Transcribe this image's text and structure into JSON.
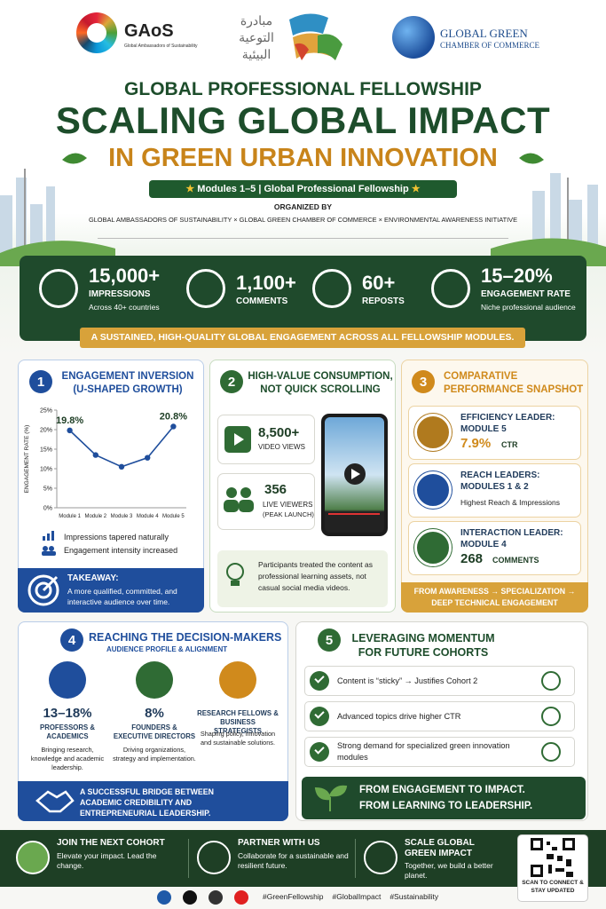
{
  "header": {
    "gaos_name": "GAoS",
    "gaos_full": "Global Ambassadors of Sustainability",
    "arabic_initiative": "مبادرة التوعية البيئية",
    "chamber_line1": "GLOBAL GREEN",
    "chamber_line2": "CHAMBER OF COMMERCE"
  },
  "title": {
    "pre": "GLOBAL PROFESSIONAL FELLOWSHIP",
    "main": "SCALING GLOBAL IMPACT",
    "sub": "IN GREEN URBAN INNOVATION",
    "badge": "Modules 1–5 | Global Professional Fellowship",
    "organized_label": "ORGANIZED BY",
    "organizers": "GLOBAL AMBASSADORS OF SUSTAINABILITY × GLOBAL GREEN CHAMBER OF COMMERCE × ENVIRONMENTAL AWARENESS INITIATIVE"
  },
  "stats": [
    {
      "value": "15,000+",
      "label": "IMPRESSIONS",
      "note": "Across 40+ countries"
    },
    {
      "value": "1,100+",
      "label": "COMMENTS"
    },
    {
      "value": "60+",
      "label": "REPOSTS"
    },
    {
      "value": "15–20%",
      "label": "ENGAGEMENT RATE",
      "note": "Niche professional audience"
    }
  ],
  "stats_banner": "A SUSTAINED, HIGH-QUALITY GLOBAL ENGAGEMENT ACROSS ALL FELLOWSHIP MODULES.",
  "panel1": {
    "number": "1",
    "title": "ENGAGEMENT INVERSION (U-SHAPED GROWTH)",
    "notes": [
      "Impressions tapered naturally",
      "Engagement intensity increased"
    ],
    "takeaway_title": "TAKEAWAY:",
    "takeaway_text": "A more qualified, committed, and interactive audience over time."
  },
  "chart_data": {
    "type": "line",
    "y_label": "ENGAGEMENT RATE (%)",
    "categories": [
      "Module 1",
      "Module 2",
      "Module 3",
      "Module 4",
      "Module 5"
    ],
    "values": [
      19.8,
      13.5,
      10.5,
      12.8,
      20.8
    ],
    "value_labels": [
      "19.8%",
      null,
      null,
      null,
      "20.8%"
    ],
    "color": "#1f4e9c",
    "ylim": [
      0,
      25
    ],
    "yticks": [
      {
        "value": 0,
        "label": "0%"
      },
      {
        "value": 5,
        "label": "5%"
      },
      {
        "value": 10,
        "label": "10%"
      },
      {
        "value": 15,
        "label": "15%"
      },
      {
        "value": 20,
        "label": "20%"
      },
      {
        "value": 25,
        "label": "25%"
      }
    ],
    "grid": false
  },
  "panel2": {
    "number": "2",
    "title": "HIGH-VALUE CONSUMPTION, NOT QUICK SCROLLING",
    "stats": [
      {
        "value": "8,500+",
        "label": "VIDEO VIEWS"
      },
      {
        "value": "356",
        "label": "LIVE VIEWERS",
        "note": "(PEAK LAUNCH)"
      }
    ],
    "note": "Participants treated the content as professional learning assets, not casual social media videos."
  },
  "panel3": {
    "number": "3",
    "title": "COMPARATIVE PERFORMANCE SNAPSHOT",
    "items": [
      {
        "heading": "EFFICIENCY LEADER:",
        "module": "MODULE 5",
        "value": "7.9%",
        "unit": "CTR"
      },
      {
        "heading": "REACH LEADERS:",
        "module": "MODULES 1 & 2",
        "detail": "Highest Reach & Impressions"
      },
      {
        "heading": "INTERACTION LEADER:",
        "module": "MODULE 4",
        "value": "268",
        "unit": "COMMENTS"
      }
    ],
    "footer": "FROM AWARENESS → SPECIALIZATION → DEEP TECHNICAL ENGAGEMENT"
  },
  "panel4": {
    "number": "4",
    "title": "REACHING THE DECISION-MAKERS",
    "subtitle": "AUDIENCE PROFILE & ALIGNMENT",
    "groups": [
      {
        "value": "13–18%",
        "label": "PROFESSORS & ACADEMICS",
        "note": "Bringing research, knowledge and academic leadership."
      },
      {
        "value": "8%",
        "label": "FOUNDERS & EXECUTIVE DIRECTORS",
        "note": "Driving organizations, strategy and implementation."
      },
      {
        "label": "RESEARCH FELLOWS & BUSINESS STRATEGISTS",
        "note": "Shaping policy, innovation and sustainable solutions."
      }
    ],
    "footer": "A SUCCESSFUL BRIDGE BETWEEN ACADEMIC CREDIBILITY AND ENTREPRENEURIAL LEADERSHIP."
  },
  "panel5": {
    "number": "5",
    "title": "LEVERAGING MOMENTUM FOR FUTURE COHORTS",
    "items": [
      "Content is “sticky” → Justifies Cohort 2",
      "Advanced topics drive higher CTR",
      "Strong demand for specialized green innovation modules"
    ],
    "footer_line1": "FROM ENGAGEMENT TO IMPACT.",
    "footer_line2": "FROM LEARNING TO LEADERSHIP."
  },
  "footer": {
    "ctas": [
      {
        "title": "JOIN THE NEXT COHORT",
        "text": "Elevate your impact. Lead the change."
      },
      {
        "title": "PARTNER WITH US",
        "text": "Collaborate for a sustainable and resilient future."
      },
      {
        "title": "SCALE GLOBAL GREEN IMPACT",
        "text": "Together, we build a better planet."
      }
    ],
    "qr_caption": "SCAN TO CONNECT & STAY UPDATED",
    "hashtags": [
      "#GreenFellowship",
      "#GlobalImpact",
      "#Sustainability"
    ]
  }
}
